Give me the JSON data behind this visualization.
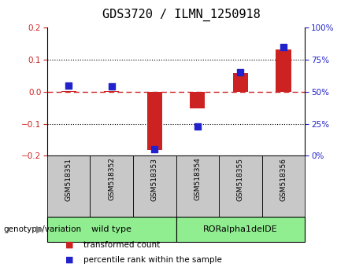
{
  "title": "GDS3720 / ILMN_1250918",
  "samples": [
    "GSM518351",
    "GSM518352",
    "GSM518353",
    "GSM518354",
    "GSM518355",
    "GSM518356"
  ],
  "transformed_count": [
    0.002,
    0.001,
    -0.182,
    -0.052,
    0.058,
    0.133
  ],
  "percentile_rank": [
    55,
    54,
    5,
    23,
    65,
    85
  ],
  "ylim_left": [
    -0.2,
    0.2
  ],
  "ylim_right": [
    0,
    100
  ],
  "yticks_left": [
    -0.2,
    -0.1,
    0,
    0.1,
    0.2
  ],
  "yticks_right": [
    0,
    25,
    50,
    75,
    100
  ],
  "bar_color": "#CC2222",
  "dot_color": "#2222CC",
  "hline_color": "#CC2222",
  "dot_size": 35,
  "bar_width": 0.35,
  "bg_color": "#FFFFFF",
  "sample_box_color": "#C8C8C8",
  "genotype_label": "genotype/variation",
  "groups_def": [
    {
      "label": "wild type",
      "start": 0,
      "end": 2,
      "color": "#90EE90"
    },
    {
      "label": "RORalpha1delDE",
      "start": 3,
      "end": 5,
      "color": "#90EE90"
    }
  ],
  "legend_items": [
    {
      "label": "transformed count",
      "color": "#CC2222"
    },
    {
      "label": "percentile rank within the sample",
      "color": "#2222CC"
    }
  ]
}
